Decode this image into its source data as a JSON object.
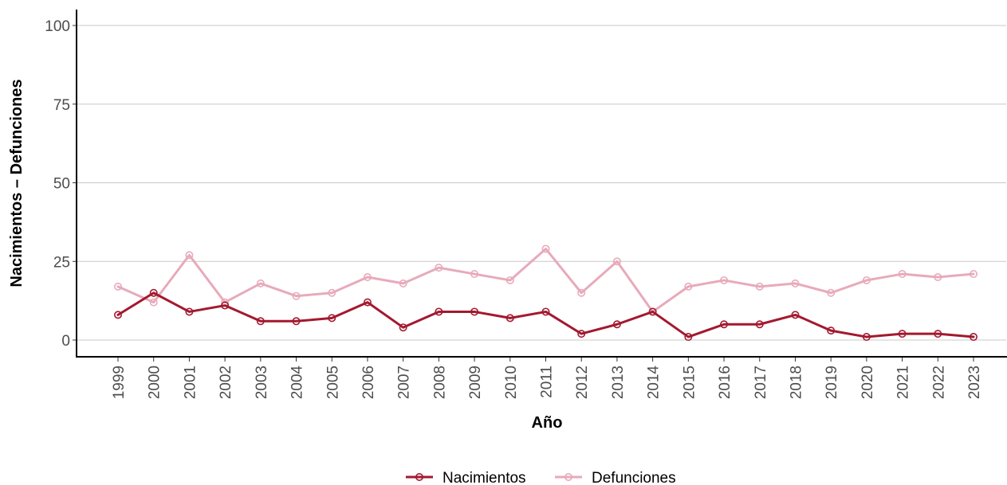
{
  "chart_data": {
    "type": "line",
    "title": "",
    "xlabel": "Año",
    "ylabel": "Nacimientos – Defunciones",
    "ylim": [
      0,
      100
    ],
    "yticks": [
      0,
      25,
      50,
      75,
      100
    ],
    "grid": "horizontal major",
    "legend_position": "bottom",
    "x": [
      1999,
      2000,
      2001,
      2002,
      2003,
      2004,
      2005,
      2006,
      2007,
      2008,
      2009,
      2010,
      2011,
      2012,
      2013,
      2014,
      2015,
      2016,
      2017,
      2018,
      2019,
      2020,
      2021,
      2022,
      2023
    ],
    "series": [
      {
        "name": "Nacimientos",
        "color": "#a3192f",
        "values": [
          8,
          15,
          9,
          11,
          6,
          6,
          7,
          12,
          4,
          9,
          9,
          7,
          9,
          2,
          5,
          9,
          1,
          5,
          5,
          8,
          3,
          1,
          2,
          2,
          1
        ]
      },
      {
        "name": "Defunciones",
        "color": "#e8aabb",
        "values": [
          17,
          12,
          27,
          12,
          18,
          14,
          15,
          20,
          18,
          23,
          21,
          19,
          29,
          15,
          25,
          9,
          17,
          19,
          17,
          18,
          15,
          19,
          21,
          20,
          21
        ]
      }
    ]
  }
}
